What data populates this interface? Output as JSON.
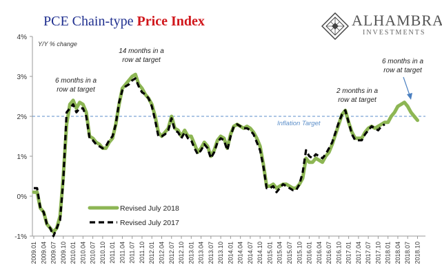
{
  "header": {
    "title_part1": "PCE Chain-type ",
    "title_part2": "Price Index"
  },
  "logo": {
    "name": "ALHAMBRA",
    "sub": "INVESTMENTS"
  },
  "colors": {
    "title_blue": "#1f2f8f",
    "title_red": "#d0161b",
    "revised_2018": "#8db654",
    "revised_2017": "#000000",
    "target_line": "#5b8ec9",
    "annotation_arrow": "#4a7fc0"
  },
  "chart_data": {
    "type": "line",
    "ylabel": "Y/Y % change",
    "ylim": [
      -1,
      4
    ],
    "y_ticks": [
      "4%",
      "3%",
      "2%",
      "1%",
      "0%",
      "-1%"
    ],
    "grid": false,
    "legend_position": "bottom-left",
    "x_tick_labels": [
      "2009.01",
      "2009.04",
      "2009.07",
      "2009.10",
      "2010.01",
      "2010.04",
      "2010.07",
      "2010.10",
      "2011.01",
      "2011.04",
      "2011.07",
      "2011.10",
      "2012.01",
      "2012.04",
      "2012.07",
      "2012.10",
      "2013.01",
      "2013.04",
      "2013.07",
      "2013.10",
      "2014.01",
      "2014.04",
      "2014.07",
      "2014.10",
      "2015.01",
      "2015.04",
      "2015.07",
      "2015.10",
      "2016.01",
      "2016.04",
      "2016.07",
      "2016.10",
      "2017.01",
      "2017.04",
      "2017.07",
      "2017.10",
      "2018.01",
      "2018.04",
      "2018.07",
      "2018.10"
    ],
    "target": {
      "value": 2,
      "label": "Inflation Target"
    },
    "series": [
      {
        "name": "Revised July 2018",
        "style": "solid",
        "values": [
          0.1,
          0.1,
          -0.3,
          -0.4,
          -0.7,
          -0.8,
          -0.9,
          -0.8,
          -0.5,
          0.5,
          1.8,
          2.3,
          2.4,
          2.2,
          2.35,
          2.3,
          2.1,
          1.5,
          1.45,
          1.35,
          1.3,
          1.2,
          1.2,
          1.35,
          1.45,
          1.8,
          2.3,
          2.7,
          2.8,
          2.9,
          3.0,
          3.05,
          2.8,
          2.7,
          2.55,
          2.45,
          2.3,
          2.0,
          1.6,
          1.5,
          1.6,
          1.7,
          2.0,
          1.7,
          1.65,
          1.5,
          1.65,
          1.5,
          1.5,
          1.3,
          1.1,
          1.2,
          1.35,
          1.25,
          1.0,
          1.15,
          1.4,
          1.5,
          1.45,
          1.2,
          1.55,
          1.75,
          1.8,
          1.75,
          1.7,
          1.75,
          1.7,
          1.6,
          1.45,
          1.25,
          0.8,
          0.25,
          0.25,
          0.3,
          0.2,
          0.25,
          0.3,
          0.3,
          0.25,
          0.2,
          0.2,
          0.3,
          0.45,
          0.95,
          0.85,
          0.85,
          0.95,
          0.9,
          0.85,
          1.0,
          1.1,
          1.3,
          1.55,
          1.8,
          2.05,
          2.15,
          1.85,
          1.6,
          1.45,
          1.45,
          1.45,
          1.6,
          1.7,
          1.75,
          1.7,
          1.75,
          1.8,
          1.85,
          1.85,
          2.0,
          2.1,
          2.25,
          2.3,
          2.35,
          2.25,
          2.1,
          2.0,
          1.9,
          1.85
        ],
        "visible_points": 118
      },
      {
        "name": "Revised July 2017",
        "style": "dashed",
        "values": [
          0.2,
          0.2,
          -0.3,
          -0.4,
          -0.7,
          -0.8,
          -1.0,
          -0.8,
          -0.6,
          0.4,
          2.1,
          2.2,
          2.3,
          2.1,
          2.2,
          2.2,
          2.0,
          1.45,
          1.4,
          1.3,
          1.25,
          1.2,
          1.25,
          1.4,
          1.5,
          1.8,
          2.35,
          2.65,
          2.75,
          2.8,
          2.9,
          2.95,
          2.75,
          2.6,
          2.55,
          2.45,
          2.25,
          1.9,
          1.5,
          1.5,
          1.55,
          1.65,
          1.95,
          1.65,
          1.6,
          1.45,
          1.6,
          1.45,
          1.4,
          1.2,
          1.05,
          1.15,
          1.3,
          1.2,
          0.95,
          1.1,
          1.35,
          1.45,
          1.4,
          1.15,
          1.5,
          1.75,
          1.8,
          1.75,
          1.7,
          1.7,
          1.65,
          1.55,
          1.35,
          1.15,
          0.75,
          0.2,
          0.2,
          0.25,
          0.1,
          0.2,
          0.3,
          0.25,
          0.2,
          0.15,
          0.15,
          0.3,
          0.6,
          1.15,
          1.0,
          0.95,
          1.05,
          1.0,
          0.95,
          1.05,
          1.2,
          1.35,
          1.6,
          1.85,
          2.05,
          2.15,
          1.85,
          1.55,
          1.4,
          1.4,
          1.4,
          1.55,
          1.65,
          1.75,
          1.7,
          1.65,
          1.75,
          1.8
        ],
        "visible_points": 108
      }
    ],
    "annotations": [
      {
        "lines": [
          "6 months in a",
          "row at target"
        ]
      },
      {
        "lines": [
          "14 months in a",
          "row at target"
        ]
      },
      {
        "lines": [
          "2 months in a",
          "row at target"
        ]
      },
      {
        "lines": [
          "6 months in a",
          "row at target"
        ]
      }
    ]
  }
}
